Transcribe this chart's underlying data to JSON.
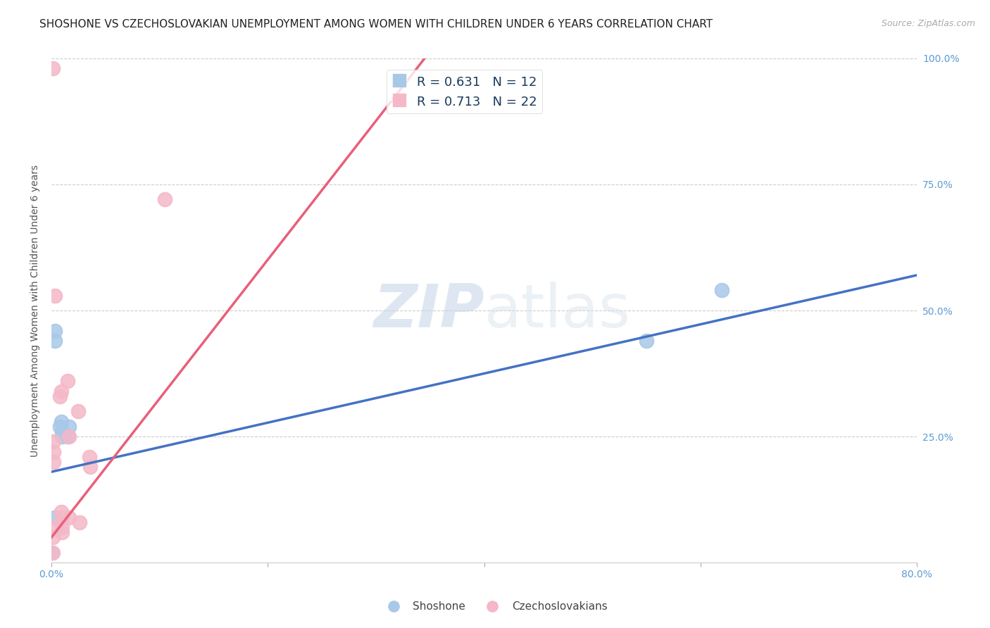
{
  "title": "SHOSHONE VS CZECHOSLOVAKIAN UNEMPLOYMENT AMONG WOMEN WITH CHILDREN UNDER 6 YEARS CORRELATION CHART",
  "source": "Source: ZipAtlas.com",
  "tick_color": "#5b9bd5",
  "ylabel": "Unemployment Among Women with Children Under 6 years",
  "watermark_zip": "ZIP",
  "watermark_atlas": "atlas",
  "xlim": [
    0.0,
    0.8
  ],
  "ylim": [
    0.0,
    1.0
  ],
  "xticks": [
    0.0,
    0.2,
    0.4,
    0.6,
    0.8
  ],
  "xtick_labels": [
    "0.0%",
    "",
    "",
    "",
    "80.0%"
  ],
  "yticks": [
    0.0,
    0.25,
    0.5,
    0.75,
    1.0
  ],
  "ytick_labels": [
    "",
    "25.0%",
    "50.0%",
    "75.0%",
    "100.0%"
  ],
  "shoshone_color": "#a8c8e8",
  "shoshone_line_color": "#4472c4",
  "czechoslovakian_color": "#f4b8c8",
  "czechoslovakian_line_color": "#e8607a",
  "shoshone_R": "0.631",
  "shoshone_N": "12",
  "czechoslovakian_R": "0.713",
  "czechoslovakian_N": "22",
  "shoshone_x": [
    0.003,
    0.003,
    0.008,
    0.009,
    0.01,
    0.01,
    0.015,
    0.016,
    0.003,
    0.55,
    0.62,
    0.0
  ],
  "shoshone_y": [
    0.44,
    0.46,
    0.27,
    0.28,
    0.26,
    0.25,
    0.25,
    0.27,
    0.09,
    0.44,
    0.54,
    0.02
  ],
  "czechoslovakian_x": [
    0.001,
    0.001,
    0.001,
    0.002,
    0.002,
    0.002,
    0.003,
    0.008,
    0.009,
    0.009,
    0.01,
    0.01,
    0.01,
    0.015,
    0.016,
    0.016,
    0.025,
    0.026,
    0.035,
    0.036,
    0.105,
    0.001
  ],
  "czechoslovakian_y": [
    0.98,
    0.07,
    0.05,
    0.24,
    0.22,
    0.2,
    0.53,
    0.33,
    0.34,
    0.1,
    0.09,
    0.07,
    0.06,
    0.36,
    0.25,
    0.09,
    0.3,
    0.08,
    0.21,
    0.19,
    0.72,
    0.02
  ],
  "shoshone_trend_x": [
    0.0,
    0.8
  ],
  "shoshone_trend_y": [
    0.18,
    0.57
  ],
  "czechoslovakian_trend_x": [
    0.0,
    0.345
  ],
  "czechoslovakian_trend_y": [
    0.05,
    1.0
  ],
  "grid_color": "#cccccc",
  "background_color": "#ffffff",
  "title_fontsize": 11,
  "axis_tick_fontsize": 10,
  "legend_r_color": "#1a3a5c",
  "legend_n_color": "#1a9632"
}
